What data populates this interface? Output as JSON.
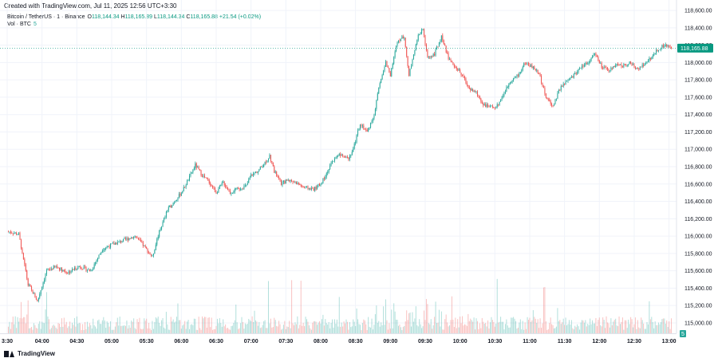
{
  "header": {
    "created": "Created with TradingView.com, Jul 11, 2025 12:56 UTC+3:30",
    "symbol": "Bitcoin / TetherUS · 1 · Binance",
    "ohlc": {
      "o_label": "O",
      "o": "118,144.34",
      "h_label": "H",
      "h": "118,165.89",
      "l_label": "L",
      "l": "118,144.34",
      "c_label": "C",
      "c": "118,165.88",
      "change": "+21.54 (+0.02%)"
    },
    "volume_label": "Vol · BTC",
    "volume_value": "5"
  },
  "footer": {
    "brand": "TradingView"
  },
  "colors": {
    "up": "#26a69a",
    "down": "#ef5350",
    "price_tag": "#089981"
  },
  "chart_data": {
    "type": "candlestick",
    "xlabel": "",
    "ylabel": "",
    "ylim": [
      114880,
      118720
    ],
    "y_ticks": [
      "118,600.00",
      "118,400.00",
      "118,200.00",
      "118,000.00",
      "117,800.00",
      "117,600.00",
      "117,400.00",
      "117,200.00",
      "117,000.00",
      "116,800.00",
      "116,600.00",
      "116,400.00",
      "116,200.00",
      "116,000.00",
      "115,800.00",
      "115,600.00",
      "115,400.00",
      "115,200.00",
      "115,000.00"
    ],
    "y_tick_values": [
      118600,
      118400,
      118200,
      118000,
      117800,
      117600,
      117400,
      117200,
      117000,
      116800,
      116600,
      116400,
      116200,
      116000,
      115800,
      115600,
      115400,
      115200,
      115000
    ],
    "x_ticks": [
      "3:30",
      "04:00",
      "04:30",
      "05:00",
      "05:30",
      "06:00",
      "06:30",
      "07:00",
      "07:30",
      "08:00",
      "08:30",
      "09:00",
      "09:30",
      "10:00",
      "10:30",
      "11:00",
      "11:30",
      "12:00",
      "12:30",
      "13:00"
    ],
    "x_tick_minutes": [
      210,
      240,
      270,
      300,
      330,
      360,
      390,
      420,
      450,
      480,
      510,
      540,
      570,
      600,
      630,
      660,
      690,
      720,
      750,
      780
    ],
    "x_range_minutes": [
      210,
      783
    ],
    "last_price": 118165.88,
    "last_price_label": "118,165.88",
    "volume_axis_label": "5",
    "price_path": [
      [
        212,
        116050
      ],
      [
        220,
        116020
      ],
      [
        228,
        115450
      ],
      [
        236,
        115250
      ],
      [
        244,
        115600
      ],
      [
        252,
        115650
      ],
      [
        262,
        115580
      ],
      [
        272,
        115650
      ],
      [
        282,
        115600
      ],
      [
        292,
        115850
      ],
      [
        300,
        115900
      ],
      [
        310,
        115950
      ],
      [
        320,
        116000
      ],
      [
        328,
        115880
      ],
      [
        335,
        115760
      ],
      [
        341,
        116050
      ],
      [
        348,
        116300
      ],
      [
        354,
        116400
      ],
      [
        360,
        116500
      ],
      [
        366,
        116650
      ],
      [
        372,
        116820
      ],
      [
        378,
        116700
      ],
      [
        384,
        116620
      ],
      [
        390,
        116500
      ],
      [
        396,
        116620
      ],
      [
        402,
        116500
      ],
      [
        410,
        116550
      ],
      [
        416,
        116580
      ],
      [
        420,
        116700
      ],
      [
        426,
        116750
      ],
      [
        432,
        116850
      ],
      [
        436,
        116920
      ],
      [
        440,
        116750
      ],
      [
        446,
        116600
      ],
      [
        452,
        116650
      ],
      [
        458,
        116620
      ],
      [
        466,
        116560
      ],
      [
        474,
        116540
      ],
      [
        480,
        116600
      ],
      [
        486,
        116750
      ],
      [
        492,
        116900
      ],
      [
        498,
        116950
      ],
      [
        504,
        116900
      ],
      [
        508,
        117000
      ],
      [
        514,
        117300
      ],
      [
        520,
        117200
      ],
      [
        526,
        117400
      ],
      [
        530,
        117700
      ],
      [
        536,
        118000
      ],
      [
        540,
        117850
      ],
      [
        546,
        118250
      ],
      [
        552,
        118300
      ],
      [
        556,
        117850
      ],
      [
        560,
        118100
      ],
      [
        564,
        118300
      ],
      [
        568,
        118400
      ],
      [
        572,
        118050
      ],
      [
        578,
        118100
      ],
      [
        584,
        118300
      ],
      [
        590,
        118050
      ],
      [
        596,
        117950
      ],
      [
        602,
        117850
      ],
      [
        608,
        117700
      ],
      [
        614,
        117650
      ],
      [
        620,
        117520
      ],
      [
        626,
        117480
      ],
      [
        632,
        117500
      ],
      [
        638,
        117650
      ],
      [
        644,
        117800
      ],
      [
        650,
        117850
      ],
      [
        656,
        118000
      ],
      [
        662,
        117950
      ],
      [
        668,
        117880
      ],
      [
        674,
        117600
      ],
      [
        680,
        117500
      ],
      [
        686,
        117700
      ],
      [
        692,
        117780
      ],
      [
        698,
        117850
      ],
      [
        704,
        117950
      ],
      [
        710,
        118000
      ],
      [
        716,
        118100
      ],
      [
        722,
        117950
      ],
      [
        728,
        117900
      ],
      [
        734,
        117980
      ],
      [
        740,
        117960
      ],
      [
        746,
        118000
      ],
      [
        752,
        117920
      ],
      [
        758,
        117980
      ],
      [
        764,
        118050
      ],
      [
        770,
        118150
      ],
      [
        776,
        118200
      ],
      [
        782,
        118166
      ]
    ]
  }
}
